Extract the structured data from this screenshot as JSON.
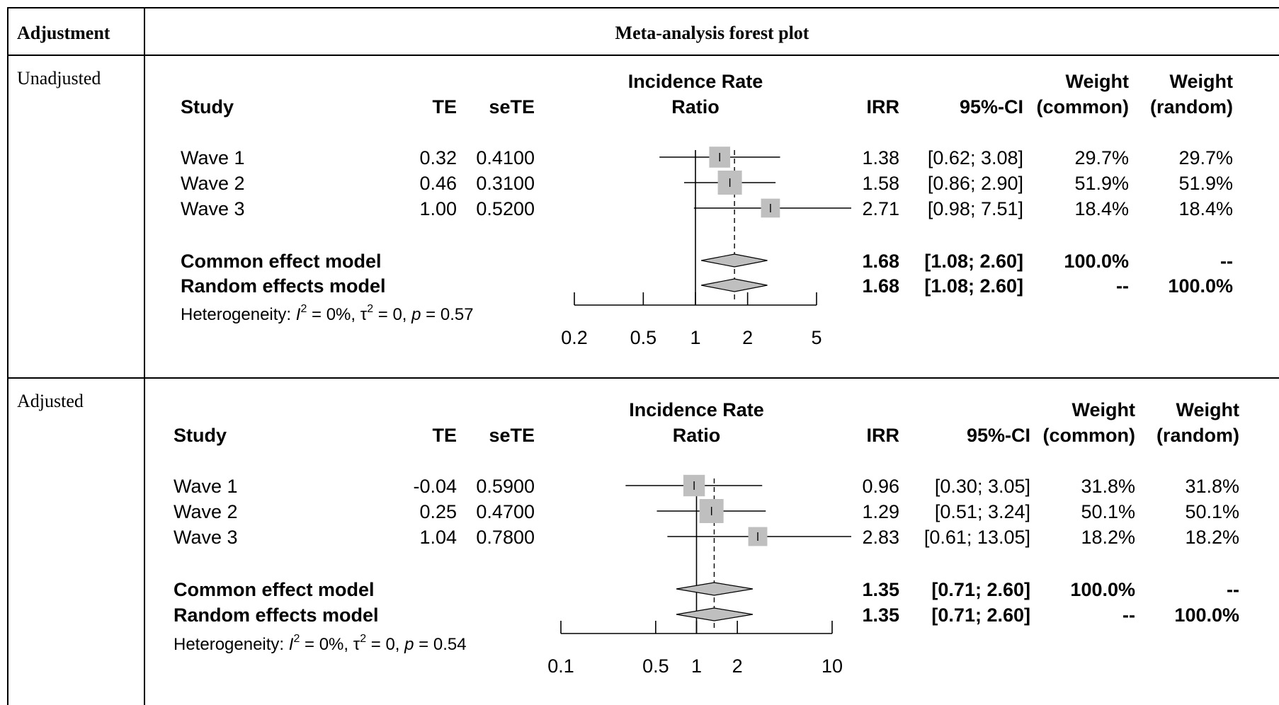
{
  "table": {
    "col1_header": "Adjustment",
    "col2_header": "Meta-analysis forest plot",
    "rows": [
      {
        "label": "Unadjusted"
      },
      {
        "label": "Adjusted"
      }
    ]
  },
  "chart_data": [
    {
      "type": "forest",
      "columns": {
        "study": "Study",
        "te": "TE",
        "sete": "seTE",
        "axis_title_line1": "Incidence Rate",
        "axis_title_line2": "Ratio",
        "irr": "IRR",
        "ci": "95%-CI",
        "wc_line1": "Weight",
        "wc_line2": "(common)",
        "wr_line1": "Weight",
        "wr_line2": "(random)"
      },
      "x_scale": "log",
      "xlim": [
        0.2,
        5
      ],
      "ticks": [
        0.2,
        0.5,
        1,
        2,
        5
      ],
      "tick_labels": [
        "0.2",
        "0.5",
        "1",
        "2",
        "5"
      ],
      "studies": [
        {
          "name": "Wave 1",
          "te": "0.32",
          "sete": "0.4100",
          "irr": 1.38,
          "lo": 0.62,
          "hi": 3.08,
          "irr_text": "1.38",
          "ci_text": "[0.62; 3.08]",
          "w_common": "29.7%",
          "w_random": "29.7%",
          "weight": 29.7
        },
        {
          "name": "Wave 2",
          "te": "0.46",
          "sete": "0.3100",
          "irr": 1.58,
          "lo": 0.86,
          "hi": 2.9,
          "irr_text": "1.58",
          "ci_text": "[0.86; 2.90]",
          "w_common": "51.9%",
          "w_random": "51.9%",
          "weight": 51.9
        },
        {
          "name": "Wave 3",
          "te": "1.00",
          "sete": "0.5200",
          "irr": 2.71,
          "lo": 0.98,
          "hi": 7.51,
          "irr_text": "2.71",
          "ci_text": "[0.98; 7.51]",
          "w_common": "18.4%",
          "w_random": "18.4%",
          "weight": 18.4
        }
      ],
      "models": [
        {
          "name": "Common effect model",
          "est": 1.68,
          "lo": 1.08,
          "hi": 2.6,
          "irr_text": "1.68",
          "ci_text": "[1.08; 2.60]",
          "w_common": "100.0%",
          "w_random": "--"
        },
        {
          "name": "Random effects model",
          "est": 1.68,
          "lo": 1.08,
          "hi": 2.6,
          "irr_text": "1.68",
          "ci_text": "[1.08; 2.60]",
          "w_common": "--",
          "w_random": "100.0%"
        }
      ],
      "heterogeneity": {
        "prefix": "Heterogeneity: ",
        "i2_value": " = 0%, ",
        "tau2_value": " = 0, ",
        "p_label": "p",
        "p_value": " = 0.57"
      }
    },
    {
      "type": "forest",
      "columns": {
        "study": "Study",
        "te": "TE",
        "sete": "seTE",
        "axis_title_line1": "Incidence Rate",
        "axis_title_line2": "Ratio",
        "irr": "IRR",
        "ci": "95%-CI",
        "wc_line1": "Weight",
        "wc_line2": "(common)",
        "wr_line1": "Weight",
        "wr_line2": "(random)"
      },
      "x_scale": "log",
      "xlim": [
        0.1,
        10
      ],
      "ticks": [
        0.1,
        0.5,
        1,
        2,
        10
      ],
      "tick_labels": [
        "0.1",
        "0.5",
        "1",
        "2",
        "10"
      ],
      "studies": [
        {
          "name": "Wave 1",
          "te": "-0.04",
          "sete": "0.5900",
          "irr": 0.96,
          "lo": 0.3,
          "hi": 3.05,
          "irr_text": "0.96",
          "ci_text": "[0.30;  3.05]",
          "w_common": "31.8%",
          "w_random": "31.8%",
          "weight": 31.8
        },
        {
          "name": "Wave 2",
          "te": "0.25",
          "sete": "0.4700",
          "irr": 1.29,
          "lo": 0.51,
          "hi": 3.24,
          "irr_text": "1.29",
          "ci_text": "[0.51;  3.24]",
          "w_common": "50.1%",
          "w_random": "50.1%",
          "weight": 50.1
        },
        {
          "name": "Wave 3",
          "te": "1.04",
          "sete": "0.7800",
          "irr": 2.83,
          "lo": 0.61,
          "hi": 13.05,
          "irr_text": "2.83",
          "ci_text": "[0.61; 13.05]",
          "w_common": "18.2%",
          "w_random": "18.2%",
          "weight": 18.2
        }
      ],
      "models": [
        {
          "name": "Common effect model",
          "est": 1.35,
          "lo": 0.71,
          "hi": 2.6,
          "irr_text": "1.35",
          "ci_text": "[0.71;  2.60]",
          "w_common": "100.0%",
          "w_random": "--"
        },
        {
          "name": "Random effects model",
          "est": 1.35,
          "lo": 0.71,
          "hi": 2.6,
          "irr_text": "1.35",
          "ci_text": "[0.71;  2.60]",
          "w_common": "--",
          "w_random": "100.0%"
        }
      ],
      "heterogeneity": {
        "prefix": "Heterogeneity: ",
        "i2_value": " = 0%, ",
        "tau2_value": " = 0, ",
        "p_label": "p",
        "p_value": " = 0.54"
      }
    }
  ]
}
